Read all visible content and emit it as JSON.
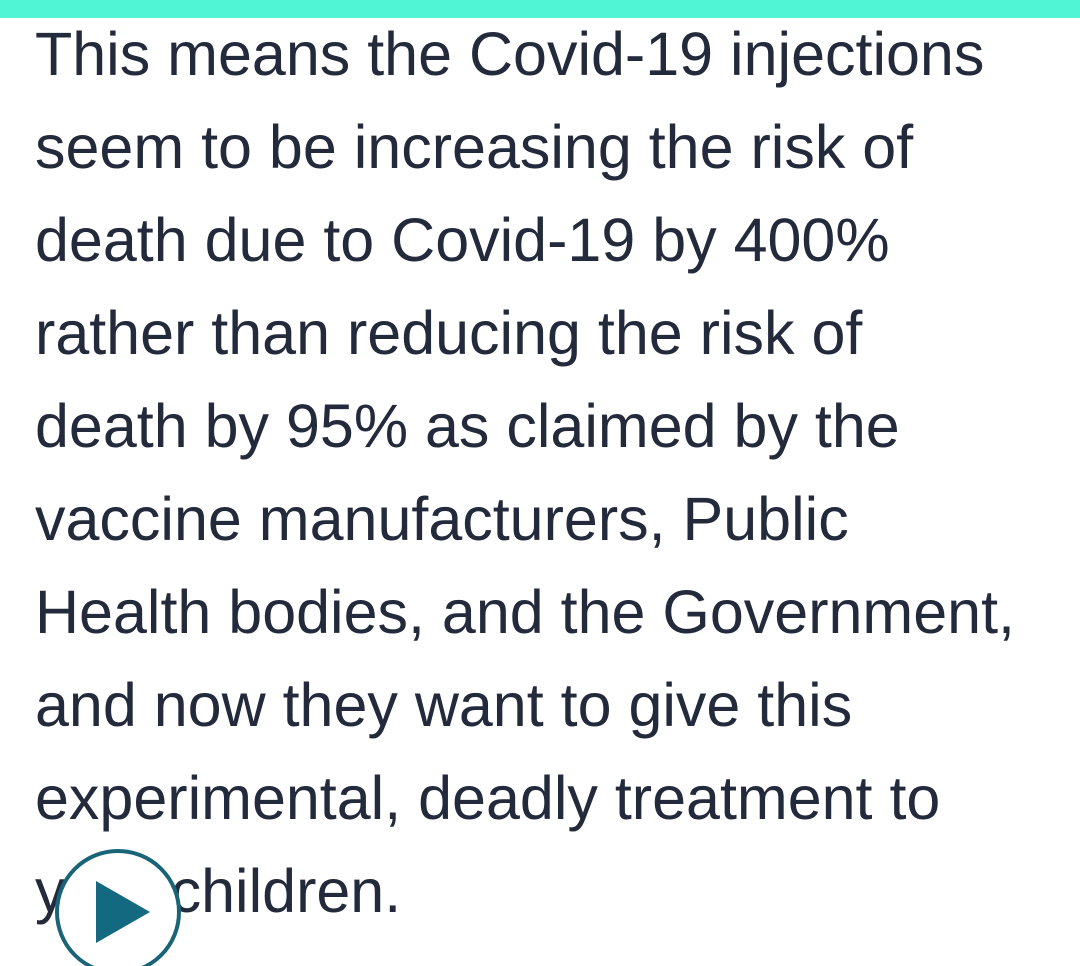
{
  "article": {
    "lines": [
      "This means the Covid-19 injections",
      "seem to be increasing the risk of",
      "death due to Covid-19 by 400%",
      "rather than reducing the risk of",
      "death by 95% as claimed by the",
      "vaccine manufacturers, Public",
      "Health bodies, and the Government,",
      "and now they want to give this",
      "experimental, deadly treatment to",
      "your children."
    ]
  },
  "colors": {
    "top_bar": "#4ff5d5",
    "text": "#222a3b",
    "play_button": "#1a6478"
  },
  "icons": {
    "play": "play-icon"
  }
}
